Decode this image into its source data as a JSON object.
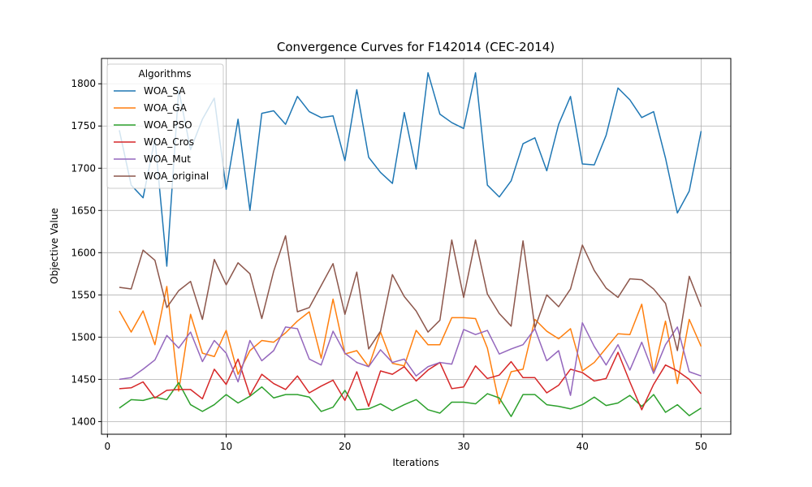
{
  "chart_data": {
    "type": "line",
    "title": "Convergence Curves for F142014 (CEC-2014)",
    "xlabel": "Iterations",
    "ylabel": "Objective Value",
    "xlim": [
      -0.5,
      52.5
    ],
    "ylim": [
      1385,
      1830
    ],
    "xticks": [
      0,
      10,
      20,
      30,
      40,
      50
    ],
    "yticks": [
      1400,
      1450,
      1500,
      1550,
      1600,
      1650,
      1700,
      1750,
      1800
    ],
    "grid": true,
    "legend": {
      "title": "Algorithms",
      "placement": "top-left"
    },
    "x": [
      1,
      2,
      3,
      4,
      5,
      6,
      7,
      8,
      9,
      10,
      11,
      12,
      13,
      14,
      15,
      16,
      17,
      18,
      19,
      20,
      21,
      22,
      23,
      24,
      25,
      26,
      27,
      28,
      29,
      30,
      31,
      32,
      33,
      34,
      35,
      36,
      37,
      38,
      39,
      40,
      41,
      42,
      43,
      44,
      45,
      46,
      47,
      48,
      49,
      50
    ],
    "series": [
      {
        "name": "WOA_SA",
        "color": "#1f77b4",
        "values": [
          1745,
          1680,
          1665,
          1735,
          1584,
          1793,
          1722,
          1758,
          1783,
          1675,
          1758,
          1650,
          1765,
          1768,
          1752,
          1785,
          1767,
          1760,
          1762,
          1709,
          1793,
          1713,
          1695,
          1682,
          1766,
          1699,
          1813,
          1764,
          1754,
          1747,
          1813,
          1680,
          1666,
          1685,
          1729,
          1736,
          1697,
          1752,
          1785,
          1705,
          1704,
          1739,
          1795,
          1781,
          1760,
          1767,
          1712,
          1647,
          1673,
          1744
        ]
      },
      {
        "name": "WOA_GA",
        "color": "#ff7f0e",
        "values": [
          1531,
          1506,
          1531,
          1491,
          1560,
          1436,
          1527,
          1481,
          1477,
          1508,
          1456,
          1484,
          1496,
          1494,
          1505,
          1519,
          1530,
          1475,
          1545,
          1480,
          1484,
          1465,
          1506,
          1469,
          1466,
          1508,
          1491,
          1491,
          1523,
          1523,
          1522,
          1487,
          1421,
          1459,
          1462,
          1521,
          1507,
          1498,
          1510,
          1460,
          1470,
          1487,
          1504,
          1503,
          1539,
          1458,
          1519,
          1445,
          1521,
          1489
        ]
      },
      {
        "name": "WOA_PSO",
        "color": "#2ca02c",
        "values": [
          1416,
          1426,
          1425,
          1429,
          1426,
          1446,
          1420,
          1412,
          1420,
          1432,
          1422,
          1430,
          1441,
          1428,
          1432,
          1432,
          1429,
          1412,
          1417,
          1437,
          1414,
          1415,
          1421,
          1413,
          1420,
          1426,
          1414,
          1410,
          1423,
          1423,
          1421,
          1433,
          1428,
          1406,
          1432,
          1432,
          1420,
          1418,
          1415,
          1420,
          1429,
          1419,
          1422,
          1431,
          1418,
          1432,
          1411,
          1420,
          1407,
          1416
        ]
      },
      {
        "name": "WOA_Cros",
        "color": "#d62728",
        "values": [
          1439,
          1440,
          1447,
          1428,
          1437,
          1438,
          1438,
          1427,
          1462,
          1444,
          1474,
          1431,
          1456,
          1445,
          1438,
          1454,
          1434,
          1442,
          1449,
          1425,
          1459,
          1418,
          1460,
          1456,
          1465,
          1448,
          1461,
          1470,
          1439,
          1441,
          1466,
          1451,
          1455,
          1471,
          1452,
          1452,
          1434,
          1443,
          1462,
          1458,
          1448,
          1451,
          1482,
          1447,
          1414,
          1444,
          1467,
          1460,
          1450,
          1433
        ]
      },
      {
        "name": "WOA_Mut",
        "color": "#9467bd",
        "values": [
          1450,
          1452,
          1462,
          1473,
          1502,
          1487,
          1506,
          1471,
          1496,
          1481,
          1447,
          1496,
          1472,
          1484,
          1512,
          1510,
          1474,
          1467,
          1507,
          1481,
          1470,
          1465,
          1485,
          1470,
          1474,
          1454,
          1465,
          1470,
          1468,
          1509,
          1503,
          1508,
          1480,
          1486,
          1491,
          1510,
          1472,
          1484,
          1431,
          1517,
          1489,
          1467,
          1491,
          1461,
          1494,
          1457,
          1491,
          1512,
          1459,
          1454
        ]
      },
      {
        "name": "WOA_original",
        "color": "#8c564b",
        "values": [
          1559,
          1557,
          1603,
          1591,
          1535,
          1555,
          1566,
          1521,
          1592,
          1562,
          1588,
          1575,
          1522,
          1578,
          1620,
          1530,
          1535,
          1561,
          1587,
          1527,
          1577,
          1486,
          1507,
          1574,
          1548,
          1531,
          1506,
          1520,
          1615,
          1547,
          1615,
          1551,
          1528,
          1513,
          1614,
          1511,
          1550,
          1536,
          1557,
          1609,
          1579,
          1558,
          1547,
          1569,
          1568,
          1557,
          1540,
          1484,
          1572,
          1536
        ]
      }
    ]
  }
}
